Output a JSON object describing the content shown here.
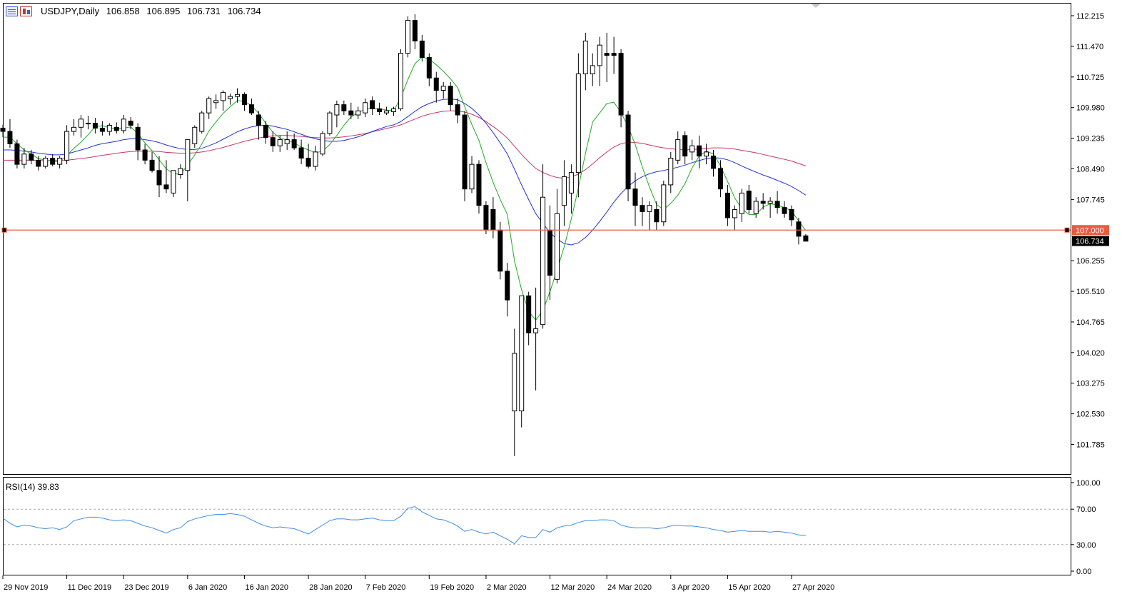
{
  "symbol": {
    "title": "USDJPY,Daily",
    "open": "106.858",
    "high": "106.895",
    "low": "106.731",
    "close": "106.734"
  },
  "icons": [
    "bar-chart-icon",
    "candlestick-icon"
  ],
  "colors": {
    "up_fill": "#ffffff",
    "down_fill": "#000000",
    "candle_stroke": "#000000",
    "ma_fast": "#22aa22",
    "ma_mid": "#2233dd",
    "ma_slow": "#cc3366",
    "hline": "#e85b3c",
    "rsi_line": "#3c8ee6",
    "grid_dash": "#aaaaaa",
    "frame": "#000000"
  },
  "price_axis": {
    "ticks": [
      "112.215",
      "111.470",
      "110.725",
      "109.980",
      "109.235",
      "108.490",
      "107.745",
      "106.255",
      "105.510",
      "104.765",
      "104.020",
      "103.275",
      "102.530",
      "101.785"
    ],
    "hline_label": "107.000",
    "current_label": "106.734"
  },
  "rsi": {
    "label": "RSI(14) 39.83",
    "ticks": [
      "100.00",
      "70.00",
      "30.00",
      "0.00"
    ],
    "levels": [
      70,
      30
    ]
  },
  "time_axis": {
    "labels": [
      "29 Nov 2019",
      "11 Dec 2019",
      "23 Dec 2019",
      "6 Jan 2020",
      "16 Jan 2020",
      "28 Jan 2020",
      "7 Feb 2020",
      "19 Feb 2020",
      "2 Mar 2020",
      "12 Mar 2020",
      "24 Mar 2020",
      "3 Apr 2020",
      "15 Apr 2020",
      "27 Apr 2020"
    ]
  },
  "chart_data": {
    "type": "candlestick",
    "symbol": "USDJPY",
    "timeframe": "Daily",
    "ylim": [
      101.35,
      112.45
    ],
    "horizontal_line": 107.0,
    "candles": [
      [
        109.48,
        109.56,
        109.26,
        109.4
      ],
      [
        109.4,
        109.7,
        109.0,
        109.1
      ],
      [
        109.1,
        109.2,
        108.5,
        108.6
      ],
      [
        108.6,
        109.0,
        108.5,
        108.85
      ],
      [
        108.85,
        108.95,
        108.6,
        108.7
      ],
      [
        108.7,
        108.8,
        108.45,
        108.55
      ],
      [
        108.55,
        108.8,
        108.5,
        108.75
      ],
      [
        108.75,
        108.85,
        108.55,
        108.6
      ],
      [
        108.6,
        108.8,
        108.5,
        108.75
      ],
      [
        108.7,
        109.55,
        108.6,
        109.4
      ],
      [
        109.4,
        109.7,
        109.3,
        109.5
      ],
      [
        109.5,
        109.8,
        109.25,
        109.7
      ],
      [
        109.6,
        109.78,
        109.45,
        109.6
      ],
      [
        109.6,
        109.73,
        109.35,
        109.48
      ],
      [
        109.48,
        109.65,
        109.3,
        109.4
      ],
      [
        109.4,
        109.6,
        109.3,
        109.55
      ],
      [
        109.5,
        109.62,
        109.35,
        109.42
      ],
      [
        109.42,
        109.8,
        109.35,
        109.7
      ],
      [
        109.65,
        109.75,
        109.45,
        109.55
      ],
      [
        109.5,
        109.6,
        108.7,
        108.95
      ],
      [
        108.95,
        109.1,
        108.6,
        108.7
      ],
      [
        108.7,
        108.9,
        108.4,
        108.45
      ],
      [
        108.45,
        108.8,
        107.8,
        108.1
      ],
      [
        108.1,
        108.7,
        107.9,
        108.0
      ],
      [
        107.9,
        108.4,
        107.8,
        108.45
      ],
      [
        108.35,
        108.6,
        108.25,
        108.5
      ],
      [
        108.45,
        109.2,
        107.7,
        109.2
      ],
      [
        109.1,
        109.55,
        109.0,
        109.5
      ],
      [
        109.4,
        109.9,
        109.35,
        109.85
      ],
      [
        109.85,
        110.25,
        109.7,
        110.2
      ],
      [
        110.1,
        110.3,
        109.95,
        110.15
      ],
      [
        110.15,
        110.4,
        109.9,
        110.35
      ],
      [
        110.2,
        110.32,
        110.05,
        110.25
      ],
      [
        110.25,
        110.45,
        110.1,
        110.3
      ],
      [
        110.3,
        110.35,
        109.9,
        110.05
      ],
      [
        110.05,
        110.2,
        109.8,
        109.85
      ],
      [
        109.8,
        109.9,
        109.2,
        109.55
      ],
      [
        109.55,
        109.65,
        109.1,
        109.25
      ],
      [
        109.25,
        109.4,
        108.9,
        109.05
      ],
      [
        109.05,
        109.3,
        108.9,
        109.2
      ],
      [
        109.1,
        109.4,
        108.95,
        109.2
      ],
      [
        109.2,
        109.35,
        108.95,
        109.0
      ],
      [
        109.0,
        109.2,
        108.6,
        108.75
      ],
      [
        108.75,
        109.1,
        108.5,
        108.55
      ],
      [
        108.55,
        109.05,
        108.45,
        108.9
      ],
      [
        108.85,
        109.4,
        108.8,
        109.35
      ],
      [
        109.35,
        109.9,
        109.3,
        109.85
      ],
      [
        109.8,
        110.15,
        109.5,
        110.05
      ],
      [
        110.05,
        110.15,
        109.8,
        109.9
      ],
      [
        109.9,
        110.1,
        109.7,
        109.8
      ],
      [
        109.8,
        110.0,
        109.7,
        109.9
      ],
      [
        109.85,
        110.2,
        109.75,
        110.1
      ],
      [
        110.15,
        110.25,
        109.8,
        109.95
      ],
      [
        109.95,
        110.1,
        109.8,
        109.88
      ],
      [
        109.85,
        110.0,
        109.8,
        109.9
      ],
      [
        109.88,
        110.0,
        109.78,
        109.95
      ],
      [
        109.95,
        111.4,
        109.9,
        111.3
      ],
      [
        111.3,
        112.2,
        111.2,
        112.1
      ],
      [
        112.1,
        112.25,
        111.4,
        111.6
      ],
      [
        111.6,
        111.75,
        111.1,
        111.2
      ],
      [
        111.2,
        111.3,
        110.5,
        110.7
      ],
      [
        110.7,
        110.85,
        110.1,
        110.4
      ],
      [
        110.4,
        110.6,
        110.2,
        110.5
      ],
      [
        110.5,
        110.6,
        109.9,
        110.05
      ],
      [
        110.05,
        110.2,
        109.6,
        109.8
      ],
      [
        109.8,
        109.9,
        107.7,
        108.0
      ],
      [
        108.0,
        108.8,
        107.9,
        108.6
      ],
      [
        108.6,
        108.7,
        107.4,
        107.6
      ],
      [
        107.6,
        107.7,
        106.9,
        107.0
      ],
      [
        107.5,
        107.8,
        106.8,
        107.0
      ],
      [
        107.0,
        107.2,
        105.8,
        106.0
      ],
      [
        106.0,
        106.2,
        104.9,
        105.3
      ],
      [
        102.6,
        104.6,
        101.5,
        104.0
      ],
      [
        102.6,
        105.3,
        102.2,
        105.4
      ],
      [
        105.4,
        105.5,
        104.2,
        104.5
      ],
      [
        104.5,
        105.6,
        103.1,
        104.6
      ],
      [
        104.7,
        108.6,
        104.6,
        107.8
      ],
      [
        107.0,
        107.6,
        105.3,
        105.9
      ],
      [
        105.8,
        108.0,
        105.7,
        107.4
      ],
      [
        107.6,
        108.7,
        107.1,
        108.3
      ],
      [
        107.9,
        108.6,
        107.4,
        108.4
      ],
      [
        108.4,
        111.3,
        107.8,
        110.8
      ],
      [
        110.8,
        111.8,
        110.4,
        111.6
      ],
      [
        110.8,
        111.3,
        110.5,
        111.0
      ],
      [
        111.0,
        111.7,
        110.5,
        111.5
      ],
      [
        111.3,
        111.8,
        110.6,
        111.25
      ],
      [
        111.3,
        111.7,
        110.8,
        111.25
      ],
      [
        111.3,
        111.4,
        109.5,
        109.8
      ],
      [
        109.8,
        109.9,
        107.7,
        108.0
      ],
      [
        108.0,
        108.4,
        107.1,
        107.6
      ],
      [
        107.6,
        107.8,
        107.1,
        107.45
      ],
      [
        107.45,
        107.7,
        107.0,
        107.6
      ],
      [
        107.5,
        107.7,
        107.0,
        107.2
      ],
      [
        107.2,
        108.2,
        107.1,
        108.1
      ],
      [
        108.1,
        108.9,
        107.9,
        108.75
      ],
      [
        108.7,
        109.4,
        108.6,
        109.2
      ],
      [
        109.3,
        109.4,
        108.6,
        108.8
      ],
      [
        108.9,
        109.2,
        108.7,
        109.05
      ],
      [
        109.05,
        109.3,
        108.5,
        108.8
      ],
      [
        108.8,
        109.1,
        108.6,
        108.9
      ],
      [
        108.8,
        108.95,
        108.3,
        108.5
      ],
      [
        108.5,
        108.7,
        107.8,
        108.0
      ],
      [
        107.9,
        108.1,
        107.1,
        107.3
      ],
      [
        107.3,
        107.6,
        107.0,
        107.5
      ],
      [
        107.4,
        108.0,
        107.2,
        107.9
      ],
      [
        107.95,
        108.1,
        107.4,
        107.5
      ],
      [
        107.4,
        107.8,
        107.3,
        107.7
      ],
      [
        107.7,
        107.9,
        107.5,
        107.65
      ],
      [
        107.65,
        107.8,
        107.3,
        107.7
      ],
      [
        107.7,
        107.95,
        107.4,
        107.55
      ],
      [
        107.55,
        107.7,
        107.3,
        107.4
      ],
      [
        107.5,
        107.6,
        107.1,
        107.25
      ],
      [
        107.2,
        107.3,
        106.65,
        106.85
      ],
      [
        106.86,
        106.9,
        106.73,
        106.73
      ]
    ],
    "ma_fast": [
      109.26,
      109.26,
      109.1,
      108.95,
      108.85,
      108.74,
      108.7,
      108.67,
      108.67,
      108.81,
      108.99,
      109.14,
      109.32,
      109.52,
      109.54,
      109.49,
      109.46,
      109.48,
      109.51,
      109.35,
      109.12,
      108.93,
      108.71,
      108.49,
      108.37,
      108.36,
      108.58,
      108.83,
      109.09,
      109.41,
      109.63,
      109.84,
      110.0,
      110.15,
      110.13,
      110.03,
      109.84,
      109.6,
      109.38,
      109.24,
      109.19,
      109.12,
      109.02,
      108.95,
      108.88,
      108.92,
      109.08,
      109.3,
      109.55,
      109.75,
      109.86,
      109.94,
      109.97,
      109.95,
      109.92,
      109.9,
      110.22,
      110.66,
      111.05,
      111.21,
      111.16,
      111.02,
      110.86,
      110.68,
      110.47,
      110.0,
      109.57,
      109.18,
      108.64,
      108.16,
      107.74,
      107.38,
      106.25,
      105.55,
      105.02,
      104.81,
      105.04,
      105.5,
      106.03,
      106.59,
      107.27,
      108.03,
      108.87,
      109.63,
      109.85,
      110.08,
      110.11,
      109.86,
      109.52,
      109.08,
      108.53,
      108.05,
      107.62,
      107.5,
      107.65,
      107.85,
      108.13,
      108.51,
      108.8,
      108.92,
      108.85,
      108.56,
      108.18,
      107.78,
      107.52,
      107.38,
      107.38,
      107.56,
      107.64,
      107.61,
      107.55,
      107.47,
      107.22,
      106.99
    ],
    "ma_mid": [
      108.95,
      108.95,
      108.94,
      108.92,
      108.9,
      108.87,
      108.85,
      108.83,
      108.83,
      108.85,
      108.9,
      108.95,
      109.0,
      109.06,
      109.1,
      109.13,
      109.16,
      109.2,
      109.22,
      109.22,
      109.2,
      109.17,
      109.13,
      109.07,
      109.02,
      108.98,
      108.96,
      108.96,
      108.99,
      109.05,
      109.12,
      109.21,
      109.3,
      109.39,
      109.46,
      109.51,
      109.54,
      109.55,
      109.53,
      109.49,
      109.45,
      109.39,
      109.33,
      109.27,
      109.22,
      109.18,
      109.16,
      109.16,
      109.18,
      109.22,
      109.27,
      109.33,
      109.4,
      109.46,
      109.52,
      109.56,
      109.64,
      109.76,
      109.89,
      110.0,
      110.08,
      110.14,
      110.18,
      110.19,
      110.17,
      110.08,
      109.96,
      109.8,
      109.6,
      109.37,
      109.12,
      108.85,
      108.48,
      108.1,
      107.74,
      107.4,
      107.16,
      106.94,
      106.78,
      106.67,
      106.64,
      106.69,
      106.82,
      107.0,
      107.21,
      107.44,
      107.68,
      107.89,
      108.06,
      108.2,
      108.3,
      108.37,
      108.42,
      108.45,
      108.49,
      108.53,
      108.58,
      108.64,
      108.69,
      108.74,
      108.76,
      108.75,
      108.71,
      108.64,
      108.56,
      108.48,
      108.41,
      108.34,
      108.28,
      108.21,
      108.14,
      108.06,
      107.96,
      107.85
    ],
    "ma_slow": [
      108.7,
      108.7,
      108.7,
      108.7,
      108.7,
      108.69,
      108.69,
      108.69,
      108.69,
      108.7,
      108.72,
      108.74,
      108.76,
      108.79,
      108.82,
      108.84,
      108.87,
      108.89,
      108.91,
      108.92,
      108.92,
      108.92,
      108.91,
      108.89,
      108.88,
      108.87,
      108.87,
      108.88,
      108.9,
      108.93,
      108.97,
      109.01,
      109.06,
      109.11,
      109.16,
      109.2,
      109.24,
      109.27,
      109.29,
      109.3,
      109.3,
      109.29,
      109.28,
      109.26,
      109.25,
      109.24,
      109.24,
      109.25,
      109.27,
      109.29,
      109.32,
      109.35,
      109.39,
      109.43,
      109.47,
      109.51,
      109.56,
      109.63,
      109.7,
      109.77,
      109.82,
      109.86,
      109.89,
      109.9,
      109.9,
      109.87,
      109.82,
      109.74,
      109.64,
      109.52,
      109.39,
      109.24,
      109.04,
      108.84,
      108.66,
      108.5,
      108.4,
      108.33,
      108.28,
      108.26,
      108.29,
      108.36,
      108.47,
      108.61,
      108.76,
      108.9,
      109.02,
      109.1,
      109.14,
      109.13,
      109.11,
      109.07,
      109.03,
      109.0,
      108.98,
      108.96,
      108.95,
      108.96,
      108.97,
      108.99,
      109.0,
      109.0,
      108.99,
      108.97,
      108.94,
      108.91,
      108.88,
      108.84,
      108.8,
      108.76,
      108.72,
      108.68,
      108.62,
      108.56
    ],
    "rsi_values": [
      60,
      54,
      50,
      52,
      51,
      49,
      48,
      49,
      47,
      50,
      57,
      59,
      61,
      61,
      60,
      58,
      57,
      58,
      57,
      54,
      51,
      49,
      46,
      43,
      47,
      49,
      56,
      59,
      61,
      63,
      64,
      64,
      65,
      64,
      62,
      58,
      54,
      51,
      49,
      50,
      49,
      48,
      45,
      42,
      47,
      52,
      57,
      59,
      59,
      58,
      58,
      59,
      60,
      58,
      57,
      57,
      62,
      71,
      73,
      67,
      63,
      59,
      58,
      55,
      51,
      45,
      47,
      44,
      42,
      44,
      40,
      36,
      31,
      40,
      38,
      38,
      47,
      44,
      49,
      51,
      52,
      55,
      57,
      57,
      58,
      58,
      57,
      52,
      50,
      49,
      49,
      49,
      48,
      49,
      51,
      52,
      51,
      51,
      50,
      49,
      47,
      46,
      44,
      45,
      46,
      45,
      45,
      45,
      44,
      45,
      44,
      43,
      41,
      40
    ],
    "rsi_ylim": [
      0,
      100
    ]
  }
}
